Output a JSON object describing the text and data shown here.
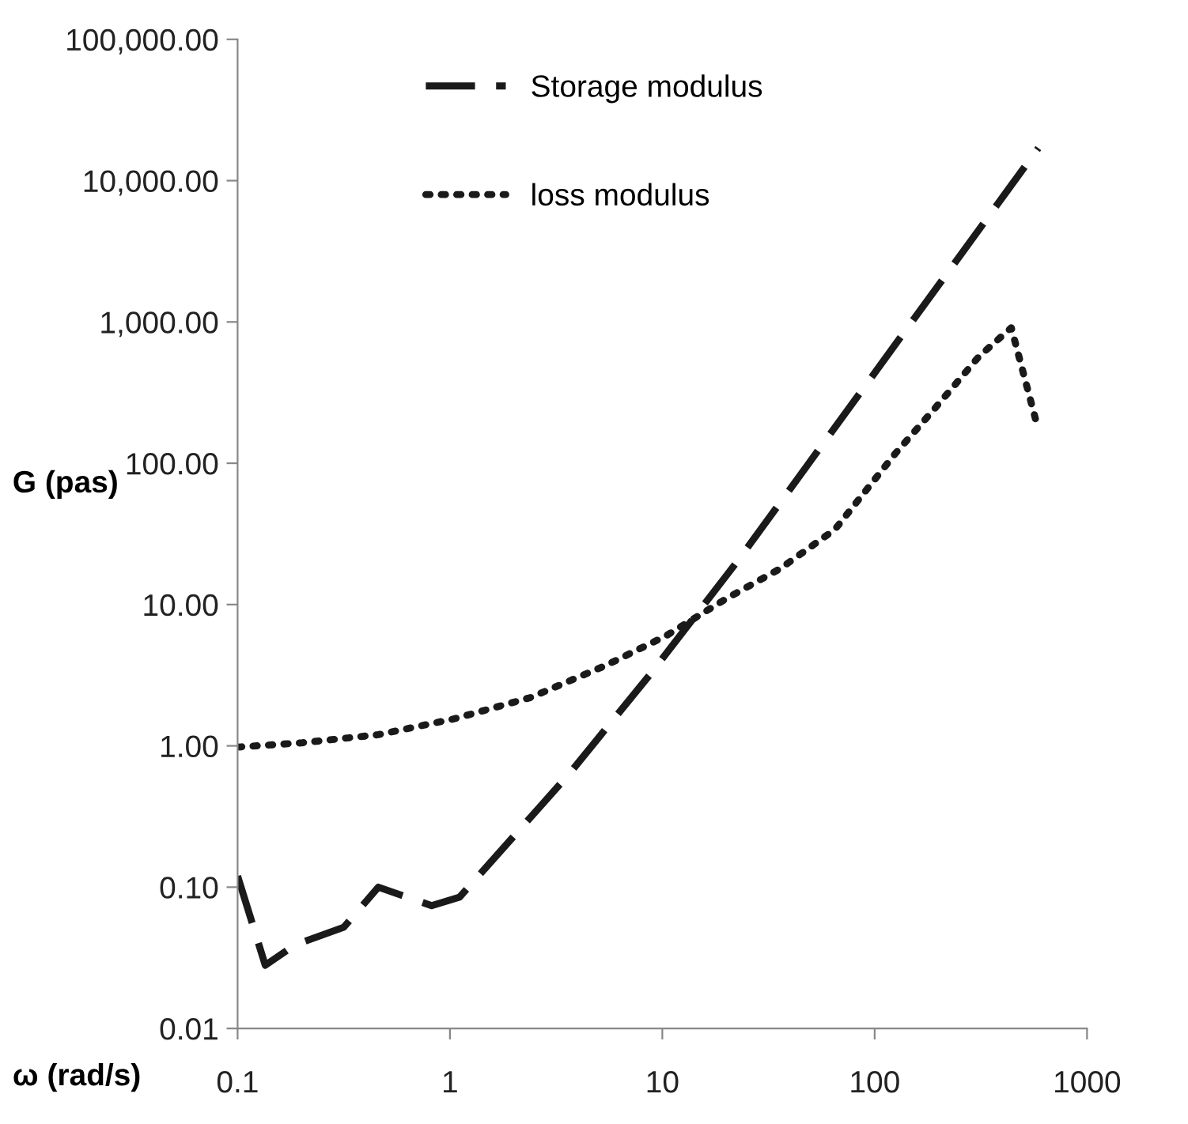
{
  "chart_data": {
    "type": "line",
    "xlabel": "ω (rad/s)",
    "ylabel": "G (pas)",
    "log": "xy",
    "grid": false,
    "legend": "top",
    "marker": "none",
    "xlim": [
      0.1,
      1000
    ],
    "xticks": [
      0.1,
      1,
      10,
      100,
      1000
    ],
    "ylim": [
      0.01,
      100000
    ],
    "yticks": [
      {
        "value": 0.01,
        "label": "0.01"
      },
      {
        "value": 0.1,
        "label": "0.10"
      },
      {
        "value": 1,
        "label": "1.00"
      },
      {
        "value": 10,
        "label": "10.00"
      },
      {
        "value": 100,
        "label": "100.00"
      },
      {
        "value": 1000,
        "label": "1,000.00"
      },
      {
        "value": 10000,
        "label": "10,000.00"
      },
      {
        "value": 100000,
        "label": "100,000.00"
      }
    ],
    "series": [
      {
        "name": "Storage modulus",
        "color": "#1a1a1a",
        "line_style": "dashed",
        "x": [
          0.1,
          0.135,
          0.186,
          0.316,
          0.46,
          0.82,
          1.11,
          3.6,
          8.9,
          23,
          590
        ],
        "values": [
          0.12,
          0.028,
          0.039,
          0.052,
          0.1,
          0.074,
          0.085,
          0.62,
          3.3,
          21,
          17000
        ]
      },
      {
        "name": "loss modulus",
        "color": "#1a1a1a",
        "line_style": "dotted",
        "x": [
          0.1,
          0.2,
          0.46,
          1.04,
          2.4,
          5.4,
          10.4,
          20,
          36,
          65,
          125,
          190,
          310,
          440,
          580
        ],
        "values": [
          0.98,
          1.05,
          1.2,
          1.55,
          2.2,
          3.7,
          6.0,
          11,
          18,
          34,
          117,
          240,
          570,
          910,
          190
        ]
      }
    ]
  }
}
